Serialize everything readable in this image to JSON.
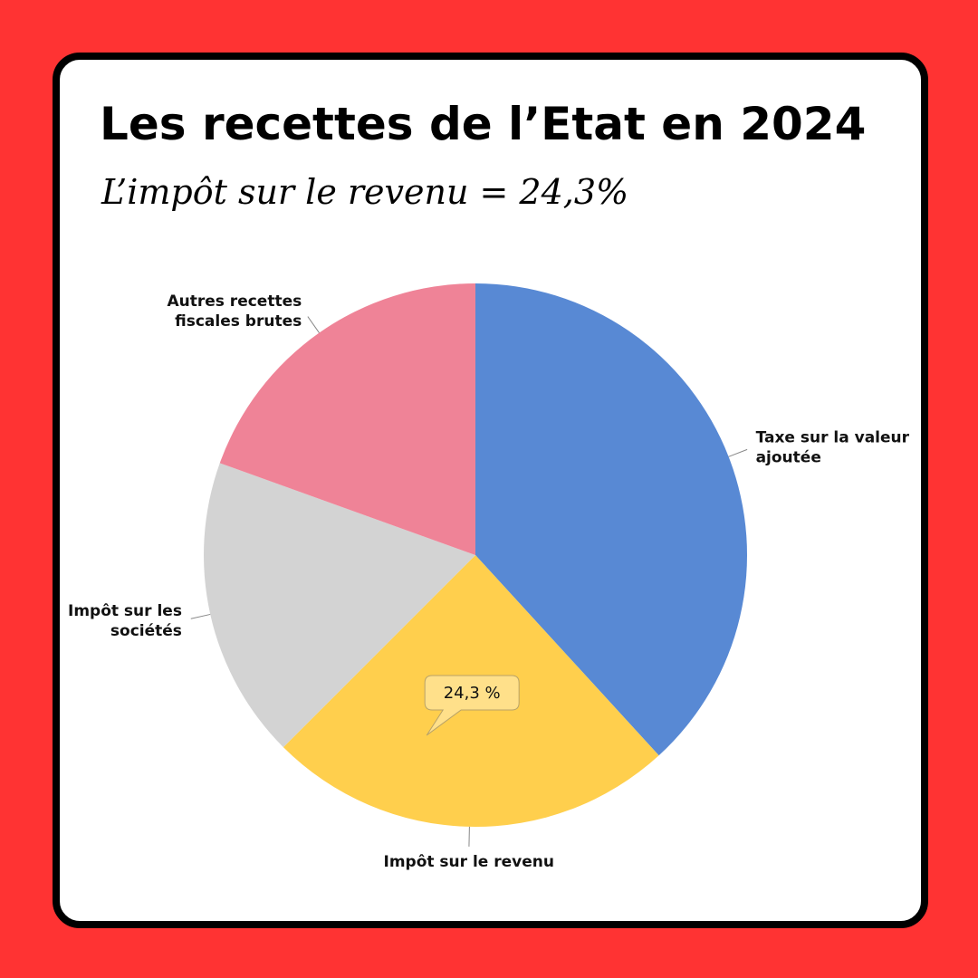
{
  "title": "Les recettes de l’Etat en 2024",
  "subtitle": "L’impôt sur le revenu = 24,3%",
  "colors": {
    "background": "#ff3333",
    "card": "#ffffff",
    "border": "#000000"
  },
  "chart_data": {
    "type": "pie",
    "start_angle_deg": 0,
    "direction": "clockwise",
    "slices": [
      {
        "label_lines": [
          "Taxe sur la valeur",
          "ajoutée"
        ],
        "value": 38.2,
        "color": "#5889d4",
        "label_side": "right"
      },
      {
        "label_lines": [
          "Impôt sur le revenu"
        ],
        "value": 24.3,
        "color": "#ffcf4d",
        "label_side": "bottom",
        "data_label": "24,3 %"
      },
      {
        "label_lines": [
          "Impôt sur les",
          "sociétés"
        ],
        "value": 18.0,
        "color": "#d3d3d3",
        "label_side": "left"
      },
      {
        "label_lines": [
          "Autres recettes",
          "fiscales brutes"
        ],
        "value": 19.5,
        "color": "#ef8397",
        "label_side": "left"
      }
    ]
  }
}
